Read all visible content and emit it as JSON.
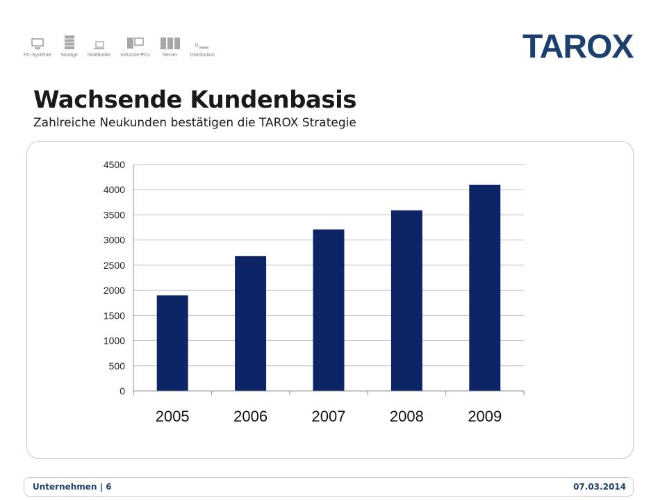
{
  "header": {
    "nav": [
      {
        "label": "PC-Systeme",
        "icon": "desktop-pc-icon"
      },
      {
        "label": "Storage",
        "icon": "storage-rack-icon"
      },
      {
        "label": "Notebooks",
        "icon": "notebook-icon"
      },
      {
        "label": "Industrie-PCs",
        "icon": "industrial-pc-icon"
      },
      {
        "label": "Server",
        "icon": "server-icon"
      },
      {
        "label": "Distribution",
        "icon": "distribution-icon"
      }
    ],
    "logo_text": "TAROX"
  },
  "slide": {
    "title": "Wachsende Kundenbasis",
    "subtitle": "Zahlreiche Neukunden bestätigen die TAROX Strategie"
  },
  "chart_data": {
    "type": "bar",
    "categories": [
      "2005",
      "2006",
      "2007",
      "2008",
      "2009"
    ],
    "values": [
      1900,
      2680,
      3210,
      3590,
      4100
    ],
    "ylim": [
      0,
      4500
    ],
    "yticks": [
      "0",
      "500",
      "1000",
      "1500",
      "2000",
      "2500",
      "3000",
      "3500",
      "4000",
      "4500"
    ],
    "grid": true,
    "legend": false,
    "bar_color": "#0d2466"
  },
  "footer": {
    "section": "Unternehmen |",
    "page": "6",
    "date": "07.03.2014"
  },
  "colors": {
    "brand": "#1c3f6e",
    "bar": "#0d2466"
  }
}
